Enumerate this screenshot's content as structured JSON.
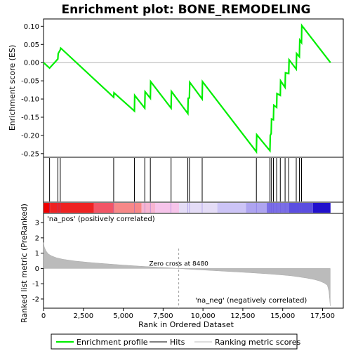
{
  "chart_data": {
    "type": "line",
    "title": "Enrichment plot: BONE_REMODELING",
    "colors": {
      "enrichment_line": "#00ee00",
      "hits": "#000000",
      "ranking_fill": "#bbbbbb",
      "zero_cross_line": "#999999",
      "pos_label": "#cc0000",
      "neg_label": "#0000cc"
    },
    "top_panel": {
      "ylabel": "Enrichment score (ES)",
      "ylim": [
        -0.26,
        0.12
      ],
      "yticks": [
        -0.25,
        -0.2,
        -0.15,
        -0.1,
        -0.05,
        0.0,
        0.05,
        0.1
      ],
      "ytick_labels": [
        "-0.25",
        "-0.20",
        "-0.15",
        "-0.10",
        "-0.05",
        "0.00",
        "0.05",
        "0.10"
      ],
      "series": [
        {
          "name": "Enrichment profile",
          "x": [
            0,
            380,
            900,
            920,
            1050,
            1080,
            4400,
            4420,
            5700,
            5720,
            6350,
            6370,
            6700,
            6720,
            8000,
            8020,
            9050,
            9070,
            9150,
            9170,
            9950,
            9970,
            13350,
            13370,
            14200,
            14220,
            14280,
            14300,
            14420,
            14440,
            14620,
            14640,
            14850,
            14870,
            15150,
            15170,
            15380,
            15400,
            15850,
            15870,
            16050,
            16070,
            16180,
            16200,
            18000
          ],
          "y": [
            0.0,
            -0.015,
            0.01,
            0.025,
            0.035,
            0.04,
            -0.095,
            -0.083,
            -0.133,
            -0.09,
            -0.125,
            -0.08,
            -0.098,
            -0.052,
            -0.125,
            -0.079,
            -0.14,
            -0.098,
            -0.097,
            -0.054,
            -0.1,
            -0.052,
            -0.245,
            -0.198,
            -0.242,
            -0.2,
            -0.195,
            -0.155,
            -0.157,
            -0.117,
            -0.123,
            -0.085,
            -0.09,
            -0.05,
            -0.068,
            -0.028,
            -0.03,
            0.008,
            -0.018,
            0.025,
            0.016,
            0.062,
            0.055,
            0.102,
            0.0
          ]
        }
      ]
    },
    "hits_x": [
      380,
      900,
      1050,
      4400,
      5700,
      6350,
      6700,
      8000,
      9050,
      9150,
      9950,
      13350,
      14200,
      14280,
      14420,
      14620,
      14850,
      15150,
      15380,
      15850,
      16050,
      16180
    ],
    "bottom_panel": {
      "ylabel": "Ranked list metric (PreRanked)",
      "xlabel": "Rank in Ordered Dataset",
      "ylim": [
        -2.6,
        3.6
      ],
      "yticks": [
        -2,
        -1,
        0,
        1,
        2,
        3
      ],
      "xlim": [
        0,
        18800
      ],
      "xticks": [
        0,
        2500,
        5000,
        7500,
        10000,
        12500,
        15000,
        17500
      ],
      "xtick_labels": [
        "0",
        "2,500",
        "5,000",
        "7,500",
        "10,000",
        "12,500",
        "15,000",
        "17,500"
      ],
      "metric_x": [
        0,
        50,
        150,
        300,
        500,
        800,
        1200,
        2000,
        3000,
        4000,
        5000,
        6000,
        7000,
        8000,
        8480,
        9000,
        10000,
        11000,
        12000,
        13000,
        14000,
        15000,
        15500,
        16000,
        16500,
        17000,
        17300,
        17600,
        17800,
        17900,
        17980
      ],
      "metric_y": [
        1.7,
        1.4,
        1.15,
        0.95,
        0.82,
        0.7,
        0.6,
        0.48,
        0.38,
        0.3,
        0.22,
        0.15,
        0.09,
        0.03,
        0.0,
        -0.04,
        -0.1,
        -0.16,
        -0.22,
        -0.28,
        -0.35,
        -0.43,
        -0.48,
        -0.55,
        -0.63,
        -0.73,
        -0.82,
        -0.95,
        -1.1,
        -1.5,
        -2.45
      ],
      "zero_cross": 8480,
      "zero_cross_label": "Zero cross at 8480",
      "pos_label": "'na_pos' (positively correlated)",
      "neg_label": "'na_neg' (negatively correlated)"
    },
    "color_bar": {
      "segments": [
        {
          "from": 0,
          "to": 400,
          "color": "#ee0000"
        },
        {
          "from": 400,
          "to": 3150,
          "color": "#ee2222"
        },
        {
          "from": 3150,
          "to": 4400,
          "color": "#f25566"
        },
        {
          "from": 4400,
          "to": 6150,
          "color": "#f78888"
        },
        {
          "from": 6150,
          "to": 7000,
          "color": "#f7b4d0"
        },
        {
          "from": 7000,
          "to": 8500,
          "color": "#f6c4ea"
        },
        {
          "from": 8500,
          "to": 10900,
          "color": "#e4dcf6"
        },
        {
          "from": 10900,
          "to": 12700,
          "color": "#ccc4f6"
        },
        {
          "from": 12700,
          "to": 14000,
          "color": "#aea4f0"
        },
        {
          "from": 14000,
          "to": 15400,
          "color": "#7b6ee6"
        },
        {
          "from": 15400,
          "to": 16900,
          "color": "#5b4ee0"
        },
        {
          "from": 16900,
          "to": 18000,
          "color": "#2211cc"
        }
      ]
    },
    "legend": {
      "items": [
        {
          "label": "Enrichment profile",
          "kind": "line",
          "color": "#00ee00"
        },
        {
          "label": "Hits",
          "kind": "line",
          "color": "#000000"
        },
        {
          "label": "Ranking metric scores",
          "kind": "line",
          "color": "#bbbbbb"
        }
      ]
    }
  }
}
